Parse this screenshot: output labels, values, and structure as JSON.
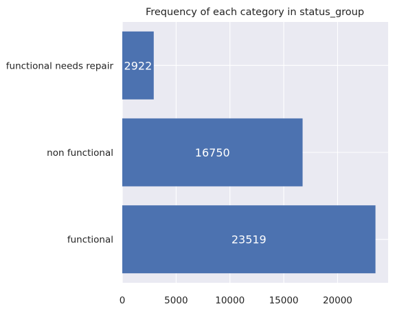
{
  "chart_data": {
    "type": "bar",
    "orientation": "horizontal",
    "title": "Frequency of each category in status_group",
    "xlabel": "",
    "ylabel": "",
    "categories": [
      "functional needs repair",
      "non functional",
      "functional"
    ],
    "values": [
      2922,
      16750,
      23519
    ],
    "data_labels": [
      "2922",
      "16750",
      "23519"
    ],
    "xlim": [
      0,
      24695
    ],
    "xticks": [
      0,
      5000,
      10000,
      15000,
      20000
    ],
    "xtick_labels": [
      "0",
      "5000",
      "10000",
      "15000",
      "20000"
    ],
    "grid": true,
    "style": "seaborn-darkgrid",
    "colors": {
      "bar": "#4c72b0",
      "plot_background": "#eaeaf2",
      "grid": "#ffffff",
      "text": "#222222",
      "data_label": "#ffffff"
    }
  }
}
